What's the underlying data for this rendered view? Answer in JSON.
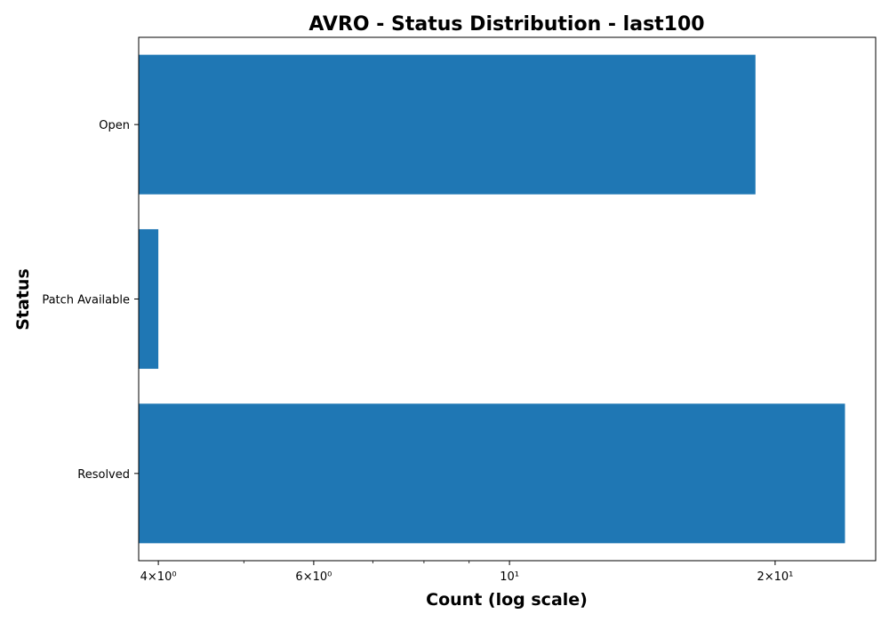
{
  "chart_data": {
    "type": "bar",
    "orientation": "horizontal",
    "title": "AVRO - Status Distribution - last100",
    "xlabel": "Count (log scale)",
    "ylabel": "Status",
    "x_scale": "log",
    "xlim": [
      3.8,
      26
    ],
    "categories": [
      "Open",
      "Patch Available",
      "Resolved"
    ],
    "values": [
      19,
      4,
      24
    ],
    "x_ticks": [
      {
        "value": 4,
        "label": "4×10⁰"
      },
      {
        "value": 6,
        "label": "6×10⁰"
      },
      {
        "value": 10,
        "label": "10¹"
      },
      {
        "value": 20,
        "label": "2×10¹"
      }
    ],
    "minor_x_ticks": [
      5,
      7,
      8,
      9
    ],
    "bar_color": "#1f77b4",
    "grid": false,
    "legend": "none"
  }
}
